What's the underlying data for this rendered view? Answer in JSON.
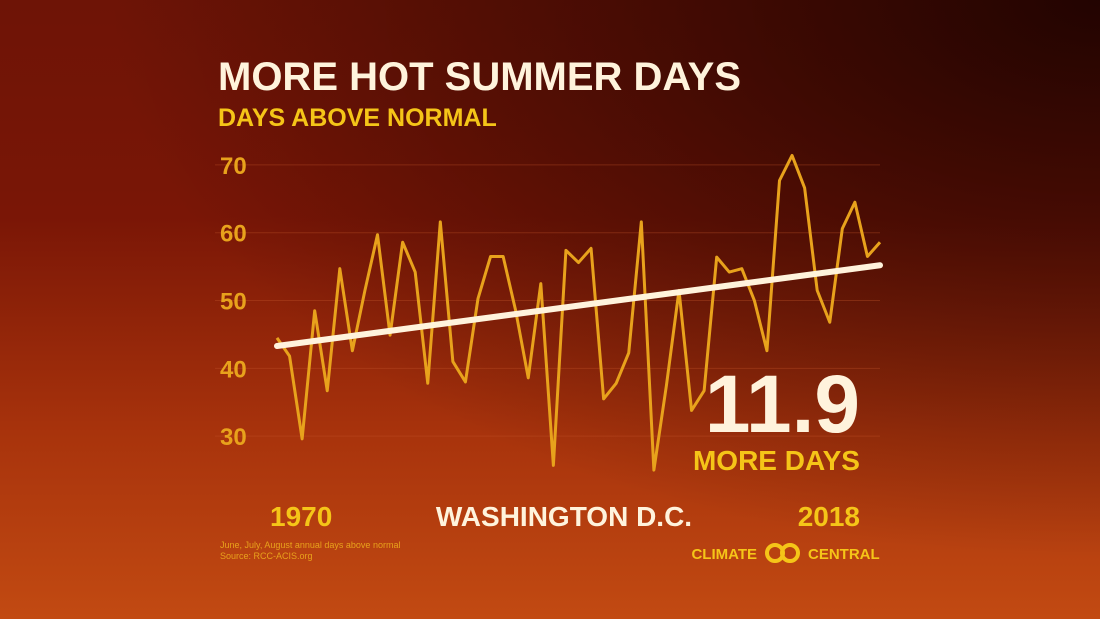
{
  "chart_data": {
    "type": "line",
    "title": "MORE HOT SUMMER DAYS",
    "subtitle": "DAYS ABOVE NORMAL",
    "location": "WASHINGTON D.C.",
    "annotation": {
      "value": "11.9",
      "text": "MORE DAYS"
    },
    "footnote": [
      "June, July, August annual days above normal",
      "Source: RCC-ACIS.org"
    ],
    "logo": [
      "CLIMATE",
      "CENTRAL"
    ],
    "x": [
      1970,
      1971,
      1972,
      1973,
      1974,
      1975,
      1976,
      1977,
      1978,
      1979,
      1980,
      1981,
      1982,
      1983,
      1984,
      1985,
      1986,
      1987,
      1988,
      1989,
      1990,
      1991,
      1992,
      1993,
      1994,
      1995,
      1996,
      1997,
      1998,
      1999,
      2000,
      2001,
      2002,
      2003,
      2004,
      2005,
      2006,
      2007,
      2008,
      2009,
      2010,
      2011,
      2012,
      2013,
      2014,
      2015,
      2016,
      2017,
      2018
    ],
    "series": [
      {
        "color": "#e8a21c",
        "values": [
          44.5,
          41.8,
          29.6,
          48.5,
          36.7,
          54.7,
          42.6,
          51.5,
          59.7,
          44.9,
          58.6,
          54.2,
          37.8,
          61.6,
          41.0,
          38.0,
          50.3,
          56.5,
          56.5,
          48.5,
          38.6,
          52.5,
          25.7,
          57.4,
          55.6,
          57.7,
          35.5,
          37.8,
          42.3,
          61.6,
          25.0,
          37.5,
          51.5,
          33.8,
          36.7,
          56.4,
          54.2,
          54.7,
          50.0,
          42.6,
          67.7,
          71.4,
          66.6,
          51.5,
          46.8,
          60.6,
          64.5,
          56.5,
          58.6
        ]
      }
    ],
    "trend": {
      "color": "#fff3dc",
      "x": [
        1970,
        2018
      ],
      "values": [
        43.3,
        55.2
      ]
    },
    "xlim": [
      1970,
      2018
    ],
    "xticks": [
      1970,
      2018
    ],
    "ylim": [
      20,
      75
    ],
    "yticks": [
      30,
      40,
      50,
      60,
      70
    ],
    "grid": true
  }
}
